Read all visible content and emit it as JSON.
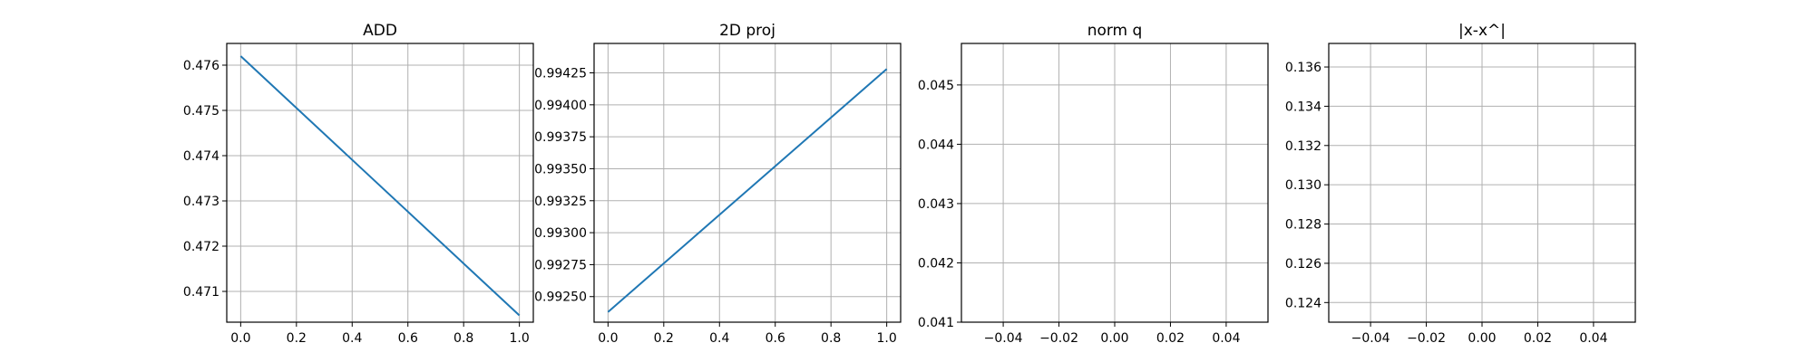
{
  "figure": {
    "background": "#ffffff",
    "line_color": "#1f77b4",
    "grid_color": "#b0b0b0"
  },
  "chart_data": [
    {
      "type": "line",
      "title": "ADD",
      "xlabel": "",
      "ylabel": "",
      "grid": true,
      "xlim": [
        -0.05,
        1.05
      ],
      "ylim": [
        0.47032,
        0.47648
      ],
      "x_ticks": [
        0.0,
        0.2,
        0.4,
        0.6,
        0.8,
        1.0
      ],
      "x_tick_labels": [
        "0.0",
        "0.2",
        "0.4",
        "0.6",
        "0.8",
        "1.0"
      ],
      "y_ticks": [
        0.471,
        0.472,
        0.473,
        0.474,
        0.475,
        0.476
      ],
      "y_tick_labels": [
        "0.471",
        "0.472",
        "0.473",
        "0.474",
        "0.475",
        "0.476"
      ],
      "series": [
        {
          "x": [
            0.0,
            1.0
          ],
          "y": [
            0.4762,
            0.47047
          ]
        }
      ]
    },
    {
      "type": "line",
      "title": "2D proj",
      "xlabel": "",
      "ylabel": "",
      "grid": true,
      "xlim": [
        -0.05,
        1.05
      ],
      "ylim": [
        0.9923,
        0.99448
      ],
      "x_ticks": [
        0.0,
        0.2,
        0.4,
        0.6,
        0.8,
        1.0
      ],
      "x_tick_labels": [
        "0.0",
        "0.2",
        "0.4",
        "0.6",
        "0.8",
        "1.0"
      ],
      "y_ticks": [
        0.9925,
        0.99275,
        0.993,
        0.99325,
        0.9935,
        0.99375,
        0.994,
        0.99425
      ],
      "y_tick_labels": [
        "0.99250",
        "0.99275",
        "0.99300",
        "0.99325",
        "0.99350",
        "0.99375",
        "0.99400",
        "0.99425"
      ],
      "series": [
        {
          "x": [
            0.0,
            1.0
          ],
          "y": [
            0.99238,
            0.99428
          ]
        }
      ]
    },
    {
      "type": "line",
      "title": "norm q",
      "xlabel": "",
      "ylabel": "",
      "grid": true,
      "xlim": [
        -0.055,
        0.055
      ],
      "ylim": [
        0.041,
        0.0457
      ],
      "x_ticks": [
        -0.04,
        -0.02,
        0.0,
        0.02,
        0.04
      ],
      "x_tick_labels": [
        "−0.04",
        "−0.02",
        "0.00",
        "0.02",
        "0.04"
      ],
      "y_ticks": [
        0.041,
        0.042,
        0.043,
        0.044,
        0.045
      ],
      "y_tick_labels": [
        "0.041",
        "0.042",
        "0.043",
        "0.044",
        "0.045"
      ],
      "series": []
    },
    {
      "type": "line",
      "title": "|x-x^|",
      "xlabel": "",
      "ylabel": "",
      "grid": true,
      "xlim": [
        -0.055,
        0.055
      ],
      "ylim": [
        0.123,
        0.1372
      ],
      "x_ticks": [
        -0.04,
        -0.02,
        0.0,
        0.02,
        0.04
      ],
      "x_tick_labels": [
        "−0.04",
        "−0.02",
        "0.00",
        "0.02",
        "0.04"
      ],
      "y_ticks": [
        0.124,
        0.126,
        0.128,
        0.13,
        0.132,
        0.134,
        0.136
      ],
      "y_tick_labels": [
        "0.124",
        "0.126",
        "0.128",
        "0.130",
        "0.132",
        "0.134",
        "0.136"
      ],
      "series": []
    }
  ]
}
